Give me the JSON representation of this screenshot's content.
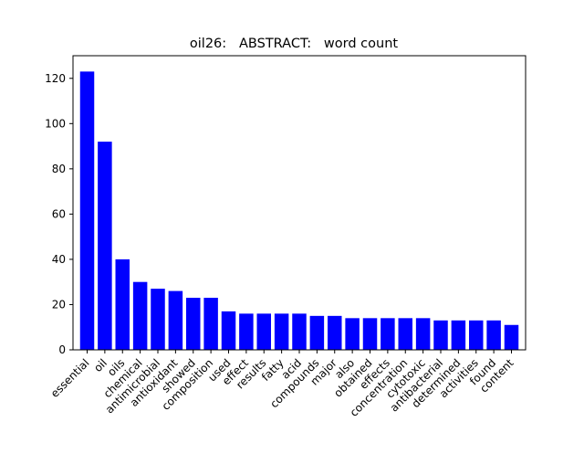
{
  "chart_data": {
    "type": "bar",
    "title": "oil26:   ABSTRACT:   word count",
    "xlabel": "",
    "ylabel": "",
    "ylim": [
      0,
      130
    ],
    "yticks": [
      0,
      20,
      40,
      60,
      80,
      100,
      120
    ],
    "grid": false,
    "bar_color": "#0000ff",
    "categories": [
      "essential",
      "oil",
      "oils",
      "chemical",
      "antimicrobial",
      "antioxidant",
      "showed",
      "composition",
      "used",
      "effect",
      "results",
      "fatty",
      "acid",
      "compounds",
      "major",
      "also",
      "obtained",
      "effects",
      "concentration",
      "cytotoxic",
      "antibacterial",
      "determined",
      "activities",
      "found",
      "content"
    ],
    "values": [
      123,
      92,
      40,
      30,
      27,
      26,
      23,
      23,
      17,
      16,
      16,
      16,
      16,
      15,
      15,
      14,
      14,
      14,
      14,
      14,
      13,
      13,
      13,
      13,
      11
    ]
  }
}
